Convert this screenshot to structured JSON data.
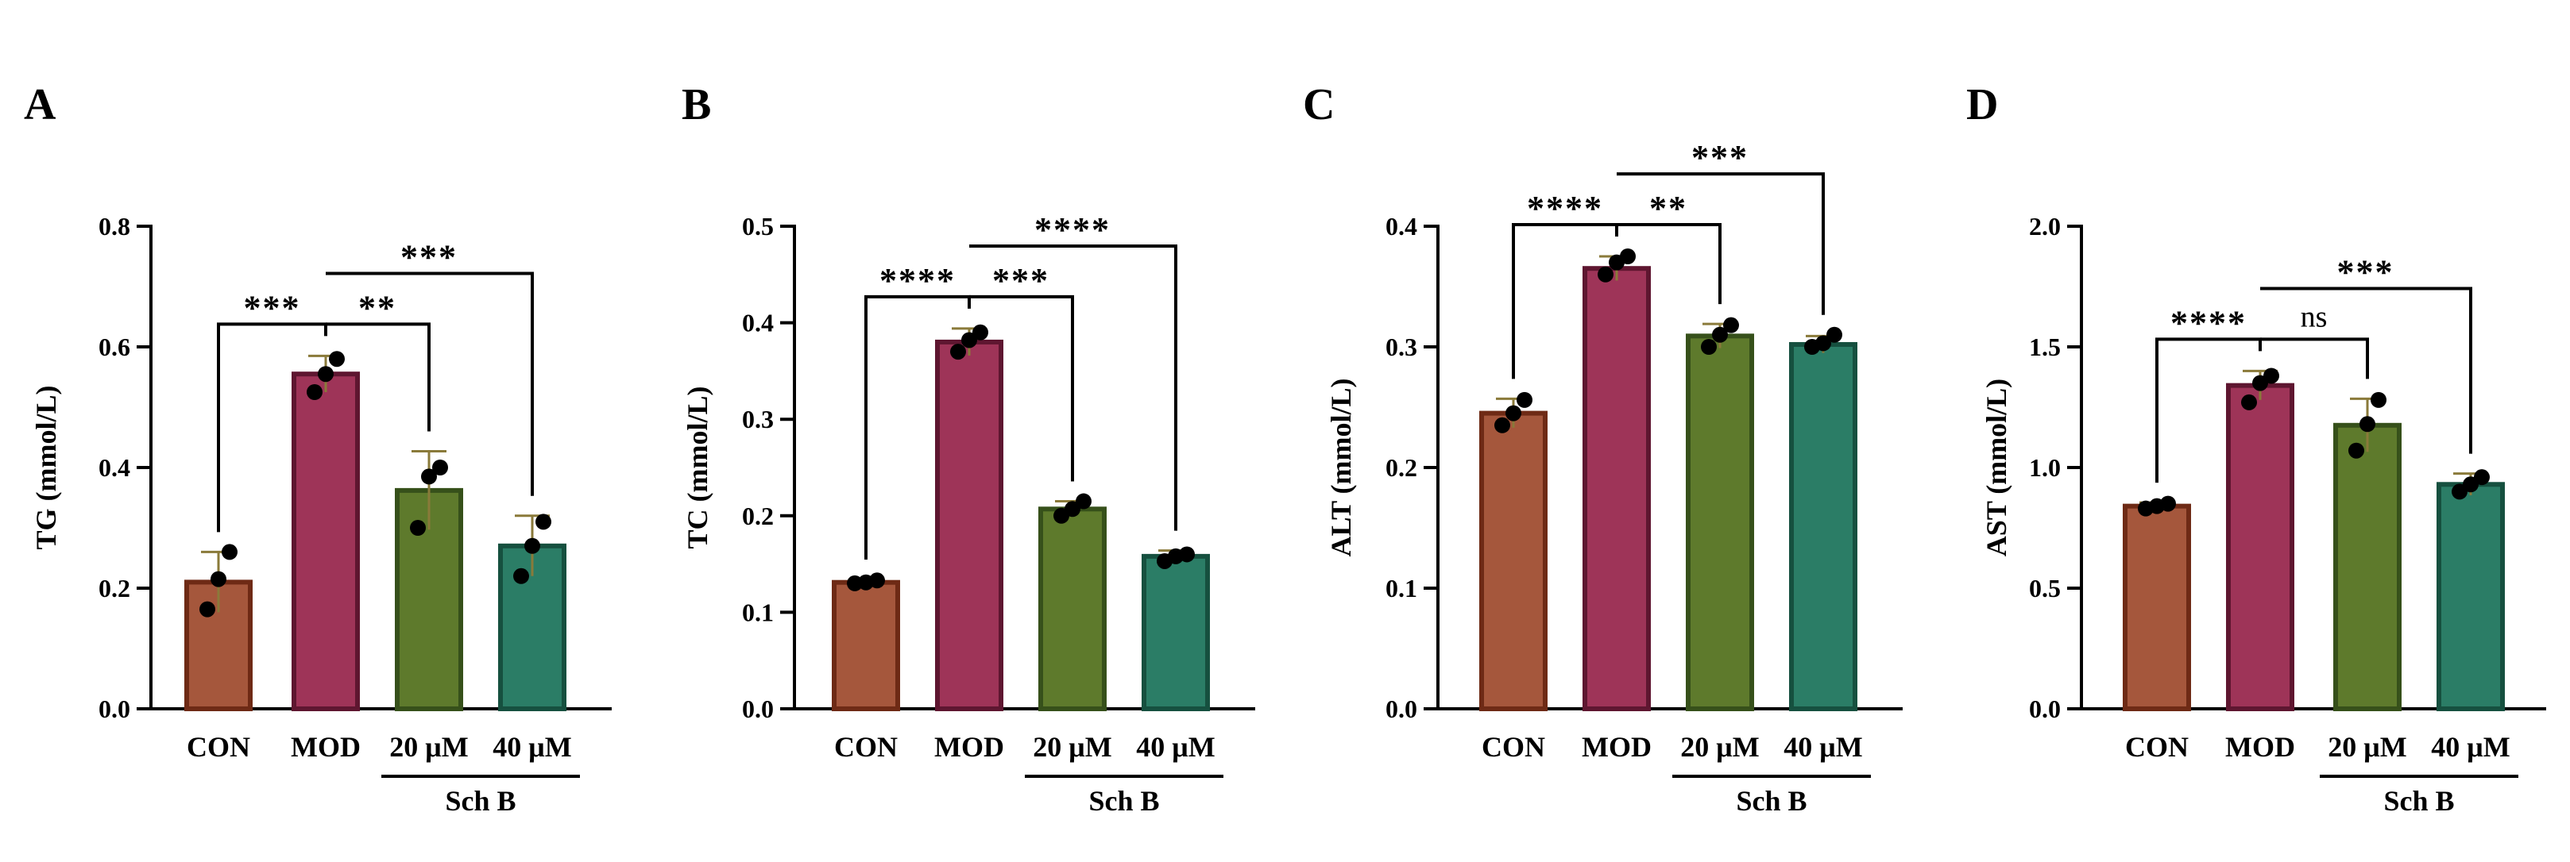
{
  "chart_data": [
    {
      "panel": "A",
      "type": "bar",
      "ylabel": "TG (mmol/L)",
      "ylim": [
        0,
        0.8
      ],
      "yticks": [
        "0.0",
        "0.2",
        "0.4",
        "0.6",
        "0.8"
      ],
      "categories": [
        "CON",
        "MOD",
        "20 μM",
        "40 μM"
      ],
      "group_label": "Sch B",
      "values": [
        0.21,
        0.555,
        0.362,
        0.27
      ],
      "errors": [
        0.05,
        0.03,
        0.065,
        0.05
      ],
      "points": [
        [
          0.165,
          0.215,
          0.26
        ],
        [
          0.525,
          0.555,
          0.58
        ],
        [
          0.3,
          0.385,
          0.4
        ],
        [
          0.22,
          0.27,
          0.31
        ]
      ],
      "comparisons": [
        {
          "from": 0,
          "to": 1,
          "label": "***",
          "level": 1
        },
        {
          "from": 1,
          "to": 2,
          "label": "**",
          "level": 1
        },
        {
          "from": 1,
          "to": 3,
          "label": "***",
          "level": 2
        }
      ]
    },
    {
      "panel": "B",
      "type": "bar",
      "ylabel": "TC (mmol/L)",
      "ylim": [
        0,
        0.5
      ],
      "yticks": [
        "0.0",
        "0.1",
        "0.2",
        "0.3",
        "0.4",
        "0.5"
      ],
      "categories": [
        "CON",
        "MOD",
        "20 μM",
        "40 μM"
      ],
      "group_label": "Sch B",
      "values": [
        0.131,
        0.38,
        0.207,
        0.158
      ],
      "errors": [
        0.003,
        0.014,
        0.008,
        0.006
      ],
      "points": [
        [
          0.13,
          0.131,
          0.133
        ],
        [
          0.37,
          0.382,
          0.39
        ],
        [
          0.2,
          0.207,
          0.215
        ],
        [
          0.153,
          0.158,
          0.16
        ]
      ],
      "comparisons": [
        {
          "from": 0,
          "to": 1,
          "label": "****",
          "level": 1
        },
        {
          "from": 1,
          "to": 2,
          "label": "***",
          "level": 1
        },
        {
          "from": 1,
          "to": 3,
          "label": "****",
          "level": 2
        }
      ]
    },
    {
      "panel": "C",
      "type": "bar",
      "ylabel": "ALT (mmol/L)",
      "ylim": [
        0,
        0.4
      ],
      "yticks": [
        "0.0",
        "0.1",
        "0.2",
        "0.3",
        "0.4"
      ],
      "categories": [
        "CON",
        "MOD",
        "20 μM",
        "40 μM"
      ],
      "group_label": "Sch B",
      "values": [
        0.245,
        0.365,
        0.309,
        0.302
      ],
      "errors": [
        0.012,
        0.01,
        0.01,
        0.007
      ],
      "points": [
        [
          0.235,
          0.245,
          0.256
        ],
        [
          0.36,
          0.37,
          0.375
        ],
        [
          0.3,
          0.31,
          0.318
        ],
        [
          0.3,
          0.303,
          0.31
        ]
      ],
      "comparisons": [
        {
          "from": 0,
          "to": 1,
          "label": "****",
          "level": 1
        },
        {
          "from": 1,
          "to": 2,
          "label": "**",
          "level": 1
        },
        {
          "from": 1,
          "to": 3,
          "label": "***",
          "level": 2
        }
      ]
    },
    {
      "panel": "D",
      "type": "bar",
      "ylabel": "AST (mmol/L)",
      "ylim": [
        0,
        2.0
      ],
      "yticks": [
        "0.0",
        "0.5",
        "1.0",
        "1.5",
        "2.0"
      ],
      "categories": [
        "CON",
        "MOD",
        "20 μM",
        "40 μM"
      ],
      "group_label": "Sch B",
      "values": [
        0.84,
        1.34,
        1.175,
        0.93
      ],
      "errors": [
        0.015,
        0.06,
        0.11,
        0.045
      ],
      "points": [
        [
          0.83,
          0.84,
          0.85
        ],
        [
          1.27,
          1.35,
          1.38
        ],
        [
          1.07,
          1.18,
          1.28
        ],
        [
          0.9,
          0.93,
          0.96
        ]
      ],
      "comparisons": [
        {
          "from": 0,
          "to": 1,
          "label": "****",
          "level": 1
        },
        {
          "from": 1,
          "to": 2,
          "label": "ns",
          "level": 1
        },
        {
          "from": 1,
          "to": 3,
          "label": "***",
          "level": 2
        }
      ]
    }
  ],
  "style": {
    "bar_fills": [
      "#a5573c",
      "#9e3458",
      "#5e7a2c",
      "#2b7d66"
    ],
    "bar_edges": [
      "#6e2a15",
      "#5e1630",
      "#36501a",
      "#16503f"
    ],
    "error_color": "#8a7a3a"
  }
}
